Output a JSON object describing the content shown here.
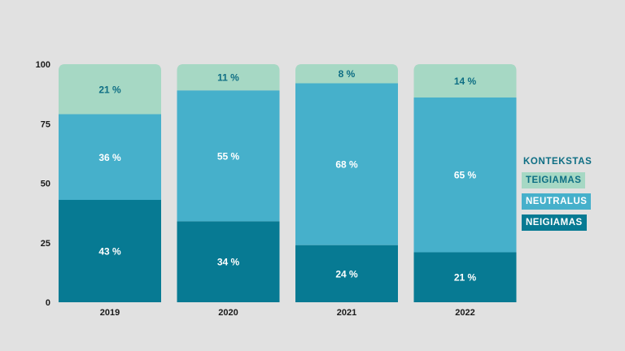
{
  "chart_data": {
    "type": "bar",
    "stacked": true,
    "categories": [
      "2019",
      "2020",
      "2021",
      "2022"
    ],
    "series": [
      {
        "name": "NEIGIAMAS",
        "values": [
          43,
          34,
          24,
          21
        ],
        "labels": [
          "43 %",
          "34 %",
          "24 %",
          "21 %"
        ]
      },
      {
        "name": "NEUTRALUS",
        "values": [
          36,
          55,
          68,
          65
        ],
        "labels": [
          "36 %",
          "55 %",
          "68 %",
          "65 %"
        ]
      },
      {
        "name": "TEIGIAMAS",
        "values": [
          21,
          11,
          8,
          14
        ],
        "labels": [
          "21 %",
          "11 %",
          "8 %",
          "14 %"
        ]
      }
    ],
    "ylim": [
      0,
      100
    ],
    "yticks": [
      "0",
      "25",
      "50",
      "75",
      "100"
    ],
    "legend_title": "KONTEKSTAS",
    "legend_position": "right",
    "colors": {
      "NEIGIAMAS": "#077a93",
      "NEUTRALUS": "#46b0cb",
      "TEIGIAMAS": "#a6d8c4",
      "track": "#cdcdcd"
    },
    "label_colors": {
      "NEIGIAMAS": "#ffffff",
      "NEUTRALUS": "#ffffff",
      "TEIGIAMAS": "#0e6e84"
    },
    "grid": false
  }
}
